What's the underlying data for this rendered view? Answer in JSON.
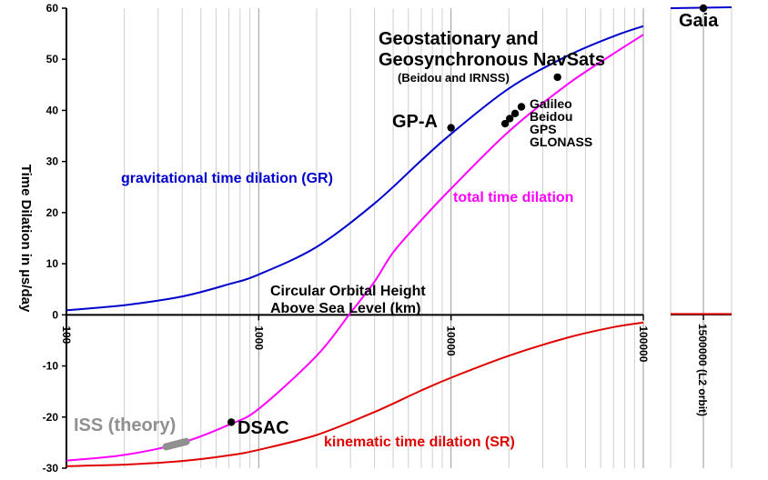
{
  "chart_data": {
    "type": "line",
    "title": "",
    "xlabel": "Circular Orbital Height Above Sea Level (km)",
    "xlabel_lines": [
      "Circular Orbital Height",
      "Above Sea Level (km)"
    ],
    "ylabel": "Time Dilation in µs/day",
    "x_scale": "log",
    "xlim": [
      100,
      100000
    ],
    "ylim": [
      -30,
      60
    ],
    "x_ticks": [
      "100",
      "1000",
      "10000",
      "100000"
    ],
    "y_ticks": [
      "60",
      "50",
      "40",
      "30",
      "20",
      "10",
      "0",
      "-10",
      "-20",
      "-30"
    ],
    "grid": true,
    "colors": {
      "gr": "#0000cc",
      "total": "#ff00ff",
      "sr": "#e00000",
      "iss": "#909090"
    },
    "series": [
      {
        "name": "gravitational time dilation (GR)",
        "color": "#0000cc",
        "x": [
          100,
          200,
          400,
          700,
          1000,
          2000,
          4000,
          7000,
          10000,
          20000,
          40000,
          70000,
          100000
        ],
        "y": [
          0.9,
          1.9,
          3.6,
          6.0,
          7.9,
          13.3,
          21.8,
          30.2,
          35.4,
          44.3,
          50.6,
          54.5,
          56.5
        ]
      },
      {
        "name": "total time dilation",
        "color": "#ff00ff",
        "x": [
          100,
          200,
          400,
          700,
          1000,
          2000,
          3000,
          4000,
          5000,
          7000,
          10000,
          20000,
          40000,
          70000,
          100000
        ],
        "y": [
          -28.5,
          -27.4,
          -25.0,
          -21.5,
          -18.4,
          -8.0,
          0.4,
          6.5,
          12.2,
          18.5,
          24.7,
          35.9,
          45.0,
          51.1,
          54.8
        ]
      },
      {
        "name": "kinematic time dilation (SR)",
        "color": "#e00000",
        "x": [
          100,
          200,
          400,
          700,
          1000,
          2000,
          4000,
          7000,
          10000,
          20000,
          40000,
          70000,
          100000
        ],
        "y": [
          -29.6,
          -29.3,
          -28.6,
          -27.5,
          -26.4,
          -23.5,
          -19.0,
          -14.8,
          -12.3,
          -8.0,
          -4.5,
          -2.4,
          -1.5
        ]
      }
    ],
    "series_labels": [
      {
        "text": "gravitational time dilation (GR)",
        "x": 330,
        "y": 26
      },
      {
        "text": "total time dilation",
        "x": 20000,
        "y": 22.8
      },
      {
        "text": "kinematic time dilation (SR)",
        "x": 8000,
        "y": -25
      }
    ],
    "points": [
      {
        "label": "GP-A",
        "x": 10000,
        "y": 36.6
      },
      {
        "label": "Geostationary and Geosynchronous NavSats",
        "x": 35786,
        "y": 46.5
      },
      {
        "label": "Galileo",
        "x": 23222,
        "y": 40.7
      },
      {
        "label": "Beidou",
        "x": 21528,
        "y": 39.4
      },
      {
        "label": "GPS",
        "x": 20200,
        "y": 38.4
      },
      {
        "label": "GLONASS",
        "x": 19100,
        "y": 37.4
      },
      {
        "label": "DSAC",
        "x": 720,
        "y": -21.0
      }
    ],
    "iss": {
      "label": "ISS (theory)",
      "x_range": [
        330,
        420
      ],
      "y_range": [
        -25.8,
        -24.8
      ]
    },
    "annotations": {
      "geo_line1": "Geostationary and",
      "geo_line2": "Geosynchronous NavSats",
      "geo_sub": "(Beidou and IRNSS)",
      "gnss": [
        "Galileo",
        "Beidou",
        "GPS",
        "GLONASS"
      ],
      "gpa": "GP-A",
      "dsac": "DSAC",
      "iss": "ISS (theory)"
    },
    "inset": {
      "x_tick": "1500000 (L2 orbit)",
      "point_label": "Gaia",
      "gr": 60.0,
      "sr": 0.0
    }
  }
}
